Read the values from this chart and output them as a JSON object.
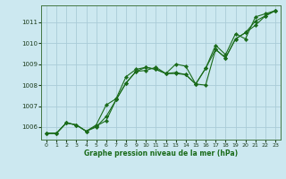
{
  "xlabel": "Graphe pression niveau de la mer (hPa)",
  "background_color": "#cce8f0",
  "grid_color": "#aaccd8",
  "line_color": "#1a6b1a",
  "xlim": [
    -0.5,
    23.5
  ],
  "ylim": [
    1005.4,
    1011.8
  ],
  "yticks": [
    1006,
    1007,
    1008,
    1009,
    1010,
    1011
  ],
  "xticks": [
    0,
    1,
    2,
    3,
    4,
    5,
    6,
    7,
    8,
    9,
    10,
    11,
    12,
    13,
    14,
    15,
    16,
    17,
    18,
    19,
    20,
    21,
    22,
    23
  ],
  "series1_x": [
    0,
    1,
    2,
    3,
    4,
    5,
    6,
    7,
    8,
    9,
    10,
    11,
    12,
    13,
    14,
    15,
    16,
    17,
    18,
    19,
    20,
    21,
    22,
    23
  ],
  "series1_y": [
    1005.7,
    1005.7,
    1006.2,
    1006.1,
    1005.8,
    1006.0,
    1006.5,
    1007.3,
    1008.1,
    1008.65,
    1008.85,
    1008.75,
    1008.55,
    1008.6,
    1008.5,
    1008.05,
    1008.0,
    1009.7,
    1009.3,
    1010.2,
    1010.5,
    1011.05,
    1011.3,
    1011.55
  ],
  "series2_x": [
    0,
    1,
    2,
    3,
    4,
    5,
    6,
    7,
    8,
    9,
    10,
    11,
    12,
    13,
    14,
    15,
    16,
    17,
    18,
    19,
    20,
    21,
    22,
    23
  ],
  "series2_y": [
    1005.7,
    1005.7,
    1006.2,
    1006.1,
    1005.8,
    1006.1,
    1007.05,
    1007.35,
    1008.4,
    1008.75,
    1008.85,
    1008.75,
    1008.55,
    1008.55,
    1008.5,
    1008.05,
    1008.8,
    1009.9,
    1009.45,
    1010.45,
    1010.2,
    1011.25,
    1011.4,
    1011.55
  ],
  "series3_x": [
    0,
    1,
    2,
    3,
    4,
    5,
    6,
    7,
    8,
    9,
    10,
    11,
    12,
    13,
    14,
    15,
    16,
    17,
    18,
    19,
    20,
    21,
    22,
    23
  ],
  "series3_y": [
    1005.7,
    1005.7,
    1006.2,
    1006.1,
    1005.8,
    1006.05,
    1006.3,
    1007.3,
    1008.1,
    1008.65,
    1008.7,
    1008.85,
    1008.55,
    1009.0,
    1008.9,
    1008.05,
    1008.8,
    1009.7,
    1009.3,
    1010.2,
    1010.5,
    1010.85,
    1011.3,
    1011.55
  ]
}
